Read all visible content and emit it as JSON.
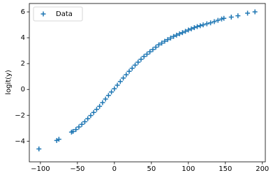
{
  "chart_data": {
    "type": "scatter",
    "y_label": "logit(y)",
    "legend": "upper left",
    "grid": false,
    "x": [
      -102,
      -78,
      -75,
      -58,
      -56,
      -52,
      -48,
      -44,
      -40,
      -36,
      -32,
      -28,
      -24,
      -20,
      -16,
      -12,
      -8,
      -4,
      0,
      4,
      8,
      12,
      16,
      20,
      24,
      28,
      32,
      36,
      40,
      44,
      48,
      52,
      56,
      60,
      64,
      68,
      72,
      76,
      80,
      84,
      88,
      92,
      96,
      100,
      104,
      108,
      112,
      116,
      120,
      125,
      130,
      135,
      140,
      145,
      148,
      158,
      167,
      180,
      190
    ],
    "series": [
      {
        "name": "Data",
        "color": "#1f77b4",
        "values": [
          -4.6,
          -3.95,
          -3.85,
          -3.3,
          -3.25,
          -3.1,
          -2.9,
          -2.7,
          -2.5,
          -2.26,
          -2.02,
          -1.78,
          -1.54,
          -1.3,
          -1.02,
          -0.74,
          -0.46,
          -0.2,
          0.05,
          0.33,
          0.61,
          0.88,
          1.14,
          1.4,
          1.64,
          1.88,
          2.11,
          2.33,
          2.55,
          2.73,
          2.91,
          3.09,
          3.27,
          3.45,
          3.59,
          3.73,
          3.86,
          3.98,
          4.1,
          4.2,
          4.3,
          4.4,
          4.5,
          4.6,
          4.69,
          4.78,
          4.86,
          4.93,
          5.0,
          5.08,
          5.15,
          5.25,
          5.35,
          5.45,
          5.5,
          5.6,
          5.7,
          5.9,
          6.0
        ]
      }
    ],
    "xlim": [
      -115,
      204
    ],
    "ylim": [
      -5.6,
      6.65
    ],
    "xticks": [
      {
        "value": -100,
        "label": "−100"
      },
      {
        "value": -50,
        "label": "−50"
      },
      0,
      50,
      100,
      150,
      200
    ],
    "yticks": [
      {
        "value": -4,
        "label": "−4"
      },
      {
        "value": -2,
        "label": "−2"
      },
      0,
      2,
      4,
      6
    ]
  }
}
